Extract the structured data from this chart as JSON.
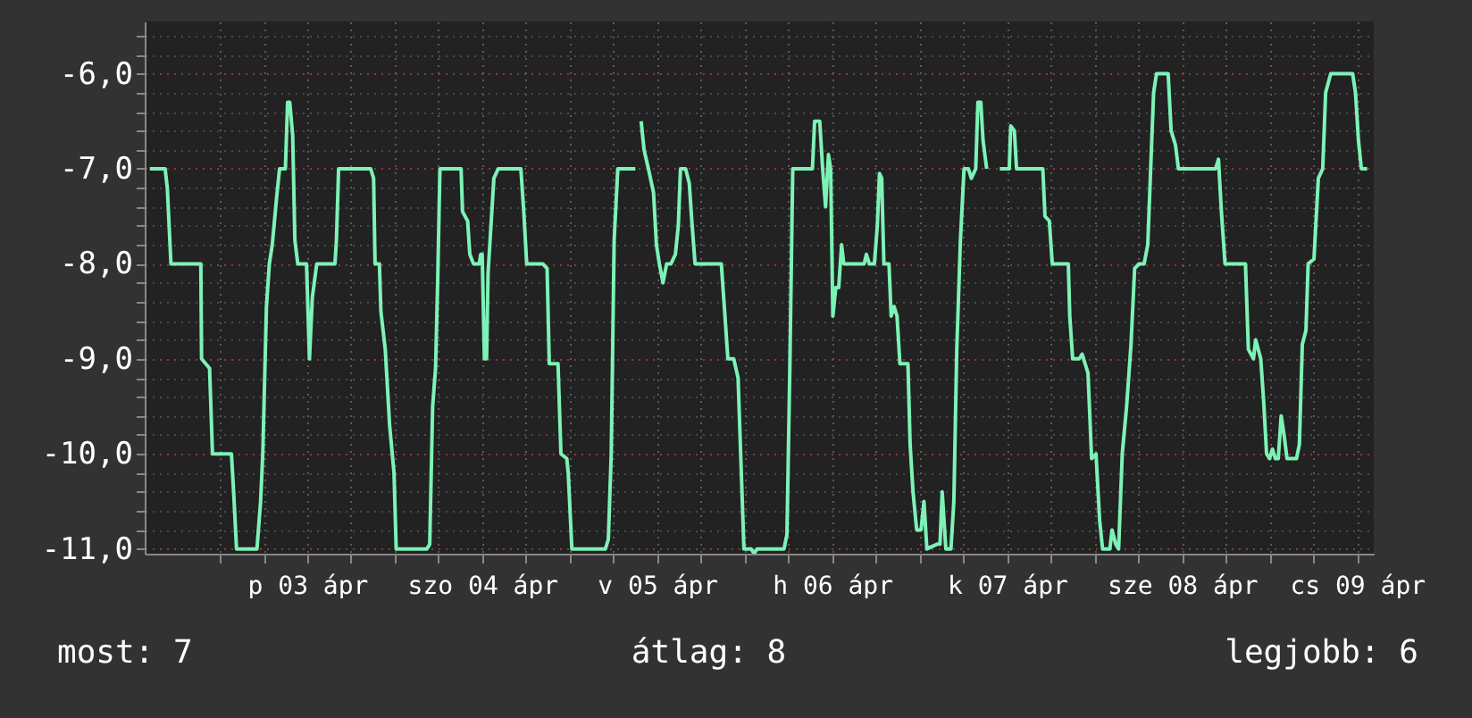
{
  "chart_data": {
    "type": "line",
    "x": [
      "--04-02T14:24",
      "--04-02T16:30",
      "--04-02T16:48",
      "--04-02T17:18",
      "--04-02T21:24",
      "--04-02T21:30",
      "--04-02T22:36",
      "--04-02T23:00",
      "--04-03T01:36",
      "--04-03T01:54",
      "--04-03T02:18",
      "--04-03T05:06",
      "--04-03T05:36",
      "--04-03T05:54",
      "--04-03T06:24",
      "--04-03T06:48",
      "--04-03T07:12",
      "--04-03T07:48",
      "--04-03T08:12",
      "--04-03T09:00",
      "--04-03T09:18",
      "--04-03T09:36",
      "--04-03T10:00",
      "--04-03T10:18",
      "--04-03T10:42",
      "--04-03T11:54",
      "--04-03T12:18",
      "--04-03T12:42",
      "--04-03T13:18",
      "--04-03T15:48",
      "--04-03T16:00",
      "--04-03T16:18",
      "--04-03T20:42",
      "--04-03T21:06",
      "--04-03T21:18",
      "--04-03T21:54",
      "--04-03T22:06",
      "--04-03T22:42",
      "--04-03T23:18",
      "--04-03T23:54",
      "--04-04T00:12",
      "--04-04T04:24",
      "--04-04T04:48",
      "--04-04T05:12",
      "--04-04T05:36",
      "--04-04T05:54",
      "--04-04T06:12",
      "--04-04T09:06",
      "--04-04T09:18",
      "--04-04T10:00",
      "--04-04T10:18",
      "--04-04T10:48",
      "--04-04T11:36",
      "--04-04T11:48",
      "--04-04T12:00",
      "--04-04T12:18",
      "--04-04T12:36",
      "--04-04T12:48",
      "--04-04T13:12",
      "--04-04T13:36",
      "--04-04T14:12",
      "--04-04T17:18",
      "--04-04T17:42",
      "--04-04T18:06",
      "--04-04T20:18",
      "--04-04T20:54",
      "--04-04T21:12",
      "--04-04T22:24",
      "--04-04T22:48",
      "--04-04T23:36",
      "--04-04T23:48",
      "--04-05T00:18",
      "--04-05T04:54",
      "--04-05T05:18",
      "--04-05T05:42",
      "--04-05T06:06",
      "--04-05T06:36",
      "--04-05T09:00",
      "--04-05T09:24",
      "--04-05T09:48",
      "--04-05T10:12",
      "--04-05T10:48",
      "--04-05T11:30",
      "--04-05T11:54",
      "--04-05T12:18",
      "--04-05T12:48",
      "--04-05T13:18",
      "--04-05T13:54",
      "--04-05T14:30",
      "--04-05T14:54",
      "--04-05T15:12",
      "--04-05T15:54",
      "--04-05T16:24",
      "--04-05T16:48",
      "--04-05T17:12",
      "--04-05T20:48",
      "--04-05T21:18",
      "--04-05T21:42",
      "--04-05T22:30",
      "--04-05T23:06",
      "--04-05T23:30",
      "--04-05T23:54",
      "--04-06T00:54",
      "--04-06T01:18",
      "--04-06T01:42",
      "--04-06T05:24",
      "--04-06T05:48",
      "--04-06T06:12",
      "--04-06T06:36",
      "--04-06T09:18",
      "--04-06T09:36",
      "--04-06T10:18",
      "--04-06T10:42",
      "--04-06T11:06",
      "--04-06T11:30",
      "--04-06T11:48",
      "--04-06T12:06",
      "--04-06T12:30",
      "--04-06T12:54",
      "--04-06T13:18",
      "--04-06T13:36",
      "--04-06T16:24",
      "--04-06T16:42",
      "--04-06T17:06",
      "--04-06T17:48",
      "--04-06T18:12",
      "--04-06T18:30",
      "--04-06T18:48",
      "--04-06T19:06",
      "--04-06T19:48",
      "--04-06T20:06",
      "--04-06T20:30",
      "--04-06T20:54",
      "--04-06T21:18",
      "--04-06T22:24",
      "--04-06T22:42",
      "--04-06T23:06",
      "--04-06T23:36",
      "--04-07T00:12",
      "--04-07T00:36",
      "--04-07T01:00",
      "--04-07T02:24",
      "--04-07T02:48",
      "--04-07T03:06",
      "--04-07T03:36",
      "--04-07T04:18",
      "--04-07T04:42",
      "--04-07T05:06",
      "--04-07T05:36",
      "--04-07T06:06",
      "--04-07T06:42",
      "--04-07T07:06",
      "--04-07T07:42",
      "--04-07T08:00",
      "--04-07T08:24",
      "--04-07T08:42",
      "--04-07T09:12",
      "--04-07T09:48",
      "--04-07T11:00",
      "--04-07T12:18",
      "--04-07T12:30",
      "--04-07T13:00",
      "--04-07T13:18",
      "--04-07T16:54",
      "--04-07T17:12",
      "--04-07T17:48",
      "--04-07T18:12",
      "--04-07T20:24",
      "--04-07T20:36",
      "--04-07T21:00",
      "--04-07T21:54",
      "--04-07T22:18",
      "--04-07T23:06",
      "--04-07T23:36",
      "--04-08T00:12",
      "--04-08T00:42",
      "--04-08T01:06",
      "--04-08T02:06",
      "--04-08T02:24",
      "--04-08T02:54",
      "--04-08T03:18",
      "--04-08T03:48",
      "--04-08T04:24",
      "--04-08T05:00",
      "--04-08T05:30",
      "--04-08T06:06",
      "--04-08T06:48",
      "--04-08T07:18",
      "--04-08T07:42",
      "--04-08T08:06",
      "--04-08T08:30",
      "--04-08T10:06",
      "--04-08T10:30",
      "--04-08T11:06",
      "--04-08T11:30",
      "--04-08T16:36",
      "--04-08T17:00",
      "--04-08T17:24",
      "--04-08T17:54",
      "--04-08T20:42",
      "--04-08T21:06",
      "--04-08T21:48",
      "--04-08T22:06",
      "--04-08T22:48",
      "--04-08T23:12",
      "--04-08T23:36",
      "--04-09T00:00",
      "--04-09T00:24",
      "--04-09T00:48",
      "--04-09T01:12",
      "--04-09T01:36",
      "--04-09T02:00",
      "--04-09T02:24",
      "--04-09T03:42",
      "--04-09T04:06",
      "--04-09T04:30",
      "--04-09T05:00",
      "--04-09T05:18",
      "--04-09T06:06",
      "--04-09T06:42",
      "--04-09T07:18",
      "--04-09T07:42",
      "--04-09T08:24",
      "--04-09T11:24",
      "--04-09T11:48",
      "--04-09T12:12",
      "--04-09T12:36",
      "--04-09T13:24"
    ],
    "series": [
      {
        "color": "#7df2b6",
        "values": [
          -7.0,
          -7.0,
          -7.2,
          -8.0,
          -8.0,
          -9.0,
          -9.1,
          -10.0,
          -10.0,
          -10.4,
          -11.0,
          -11.0,
          -10.5,
          -10.0,
          -8.45,
          -8.0,
          -7.8,
          -7.3,
          -7.0,
          -7.0,
          -6.3,
          -6.3,
          -6.65,
          -7.75,
          -8.0,
          -8.0,
          -9.0,
          -8.35,
          -8.0,
          -8.0,
          -7.75,
          -7.0,
          -7.0,
          -7.1,
          -8.0,
          -8.0,
          -8.5,
          -8.9,
          -9.7,
          -10.2,
          -11.0,
          -11.0,
          -10.95,
          -9.5,
          -9.1,
          -8.15,
          -7.0,
          -7.0,
          -7.45,
          -7.55,
          -7.9,
          -8.0,
          -8.0,
          -7.9,
          -7.9,
          -9.0,
          -9.0,
          -8.1,
          -7.6,
          -7.1,
          -7.0,
          -7.0,
          -7.45,
          -8.0,
          -8.0,
          -8.05,
          -9.05,
          -9.05,
          -10.0,
          -10.05,
          -10.2,
          -11.0,
          -11.0,
          -10.9,
          -10.0,
          -7.75,
          -7.0,
          -7.0,
          null,
          -6.5,
          -6.8,
          -7.0,
          -7.25,
          -7.8,
          -8.0,
          -8.2,
          -8.0,
          -8.0,
          -7.9,
          -7.6,
          -7.0,
          -7.0,
          -7.15,
          -7.6,
          -8.0,
          -8.0,
          -8.55,
          -9.0,
          -9.0,
          -9.2,
          -10.1,
          -11.0,
          -11.0,
          -11.05,
          -11.0,
          -11.0,
          -10.85,
          -9.1,
          -7.0,
          -7.0,
          -6.5,
          -6.5,
          -7.0,
          -7.4,
          -6.85,
          -7.0,
          -8.55,
          -8.25,
          -8.25,
          -7.8,
          -8.0,
          -8.0,
          -7.9,
          -8.0,
          -8.0,
          -7.6,
          -7.05,
          -7.1,
          -8.0,
          -8.0,
          -8.55,
          -8.45,
          -8.55,
          -9.05,
          -9.05,
          -9.9,
          -10.4,
          -10.8,
          -10.8,
          -10.5,
          -11.0,
          -10.95,
          -10.95,
          -10.4,
          -11.0,
          -11.0,
          -10.5,
          -8.9,
          -7.75,
          -7.0,
          -7.0,
          -7.1,
          -7.0,
          -6.3,
          -6.3,
          -6.7,
          -7.0,
          null,
          -7.0,
          -7.0,
          -6.55,
          -6.6,
          -7.0,
          -7.0,
          -7.5,
          -7.55,
          -8.0,
          -8.0,
          -8.55,
          -9.0,
          -9.0,
          -8.95,
          -9.15,
          -10.05,
          -10.0,
          -10.7,
          -11.0,
          -11.0,
          -10.8,
          -10.95,
          -11.0,
          -10.0,
          -9.5,
          -8.85,
          -8.05,
          -8.0,
          -8.0,
          -7.8,
          -7.0,
          -6.2,
          -6.0,
          -6.0,
          -6.6,
          -6.75,
          -7.0,
          -7.0,
          -6.9,
          -7.45,
          -8.0,
          -8.0,
          -8.9,
          -9.0,
          -8.8,
          -9.0,
          -9.45,
          -10.0,
          -10.05,
          -9.95,
          -10.05,
          -10.05,
          -9.6,
          -9.8,
          -10.05,
          -10.05,
          -9.9,
          -8.85,
          -8.7,
          -8.0,
          -7.95,
          -7.1,
          -7.0,
          -6.2,
          -6.0,
          -6.0,
          -6.2,
          -6.7,
          -7.0,
          -7.0
        ]
      }
    ],
    "xlim": [
      "--04-02T13:42",
      "--04-09T14:18"
    ],
    "xticks": [
      {
        "value": "--04-03T00:00",
        "label": null
      },
      {
        "value": "--04-03T06:00",
        "label": null
      },
      {
        "value": "--04-03T12:00",
        "label": "p 03 ápr"
      },
      {
        "value": "--04-03T18:00",
        "label": null
      },
      {
        "value": "--04-04T00:00",
        "label": null
      },
      {
        "value": "--04-04T06:00",
        "label": null
      },
      {
        "value": "--04-04T12:00",
        "label": "szo 04 ápr"
      },
      {
        "value": "--04-04T18:00",
        "label": null
      },
      {
        "value": "--04-05T00:00",
        "label": null
      },
      {
        "value": "--04-05T06:00",
        "label": null
      },
      {
        "value": "--04-05T12:00",
        "label": "v 05 ápr"
      },
      {
        "value": "--04-05T18:00",
        "label": null
      },
      {
        "value": "--04-06T00:00",
        "label": null
      },
      {
        "value": "--04-06T06:00",
        "label": null
      },
      {
        "value": "--04-06T12:00",
        "label": "h 06 ápr"
      },
      {
        "value": "--04-06T18:00",
        "label": null
      },
      {
        "value": "--04-07T00:00",
        "label": null
      },
      {
        "value": "--04-07T06:00",
        "label": null
      },
      {
        "value": "--04-07T12:00",
        "label": "k 07 ápr"
      },
      {
        "value": "--04-07T18:00",
        "label": null
      },
      {
        "value": "--04-08T00:00",
        "label": null
      },
      {
        "value": "--04-08T06:00",
        "label": null
      },
      {
        "value": "--04-08T12:00",
        "label": "sze 08 ápr"
      },
      {
        "value": "--04-08T18:00",
        "label": null
      },
      {
        "value": "--04-09T00:00",
        "label": null
      },
      {
        "value": "--04-09T06:00",
        "label": null
      },
      {
        "value": "--04-09T12:00",
        "label": "cs 09 ápr"
      }
    ],
    "ylim": [
      -11.05,
      -5.45
    ],
    "yticks": [
      {
        "value": -11,
        "label": "-11,0"
      },
      {
        "value": -10.8,
        "label": null
      },
      {
        "value": -10.6,
        "label": null
      },
      {
        "value": -10.4,
        "label": null
      },
      {
        "value": -10.2,
        "label": null
      },
      {
        "value": -10,
        "label": "-10,0"
      },
      {
        "value": -9.8,
        "label": null
      },
      {
        "value": -9.6,
        "label": null
      },
      {
        "value": -9.4,
        "label": null
      },
      {
        "value": -9.2,
        "label": null
      },
      {
        "value": -9,
        "label": "-9,0"
      },
      {
        "value": -8.8,
        "label": null
      },
      {
        "value": -8.6,
        "label": null
      },
      {
        "value": -8.4,
        "label": null
      },
      {
        "value": -8.2,
        "label": null
      },
      {
        "value": -8,
        "label": "-8,0"
      },
      {
        "value": -7.8,
        "label": null
      },
      {
        "value": -7.6,
        "label": null
      },
      {
        "value": -7.4,
        "label": null
      },
      {
        "value": -7.2,
        "label": null
      },
      {
        "value": -7,
        "label": "-7,0"
      },
      {
        "value": -6.8,
        "label": null
      },
      {
        "value": -6.6,
        "label": null
      },
      {
        "value": -6.4,
        "label": null
      },
      {
        "value": -6.2,
        "label": null
      },
      {
        "value": -6,
        "label": "-6,0"
      },
      {
        "value": -5.8,
        "label": null
      },
      {
        "value": -5.6,
        "label": null
      }
    ],
    "grid": true,
    "marker": "none",
    "line_style": "solid",
    "annotations": [
      "most: 7",
      "átlag: 8",
      "legjobb: 6"
    ]
  }
}
